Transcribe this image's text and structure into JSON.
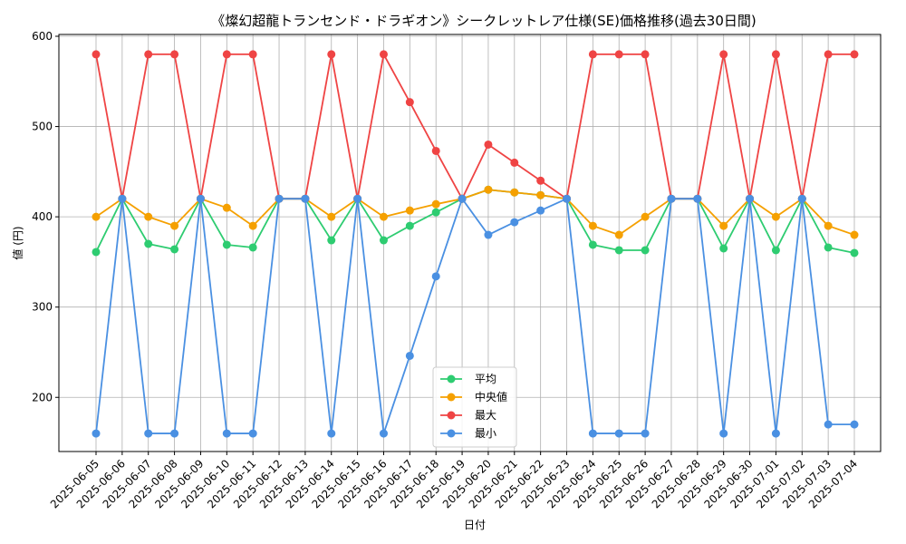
{
  "chart_data": {
    "type": "line",
    "title": "《燦幻超龍トランセンド・ドラギオン》シークレットレア仕様(SE)価格推移(過去30日間)",
    "xlabel": "日付",
    "ylabel": "値 (円)",
    "ylim": [
      140,
      602
    ],
    "yticks": [
      200,
      300,
      400,
      500,
      600
    ],
    "grid": true,
    "legend_position": "bottom-center",
    "categories": [
      "2025-06-05",
      "2025-06-06",
      "2025-06-07",
      "2025-06-08",
      "2025-06-09",
      "2025-06-10",
      "2025-06-11",
      "2025-06-12",
      "2025-06-13",
      "2025-06-14",
      "2025-06-15",
      "2025-06-16",
      "2025-06-17",
      "2025-06-18",
      "2025-06-19",
      "2025-06-20",
      "2025-06-21",
      "2025-06-22",
      "2025-06-23",
      "2025-06-24",
      "2025-06-25",
      "2025-06-26",
      "2025-06-27",
      "2025-06-28",
      "2025-06-29",
      "2025-06-30",
      "2025-07-01",
      "2025-07-02",
      "2025-07-03",
      "2025-07-04"
    ],
    "series": [
      {
        "name": "平均",
        "color": "#2ecc71",
        "values": [
          361,
          420,
          370,
          364,
          420,
          369,
          366,
          420,
          420,
          374,
          420,
          374,
          390,
          405,
          420,
          430,
          427,
          424,
          420,
          369,
          363,
          363,
          420,
          420,
          365,
          420,
          363,
          420,
          366,
          360
        ]
      },
      {
        "name": "中央値",
        "color": "#f5a000",
        "values": [
          400,
          420,
          400,
          390,
          420,
          410,
          390,
          420,
          420,
          400,
          420,
          400,
          407,
          414,
          420,
          430,
          427,
          424,
          420,
          390,
          380,
          400,
          420,
          420,
          390,
          420,
          400,
          420,
          390,
          380
        ]
      },
      {
        "name": "最大",
        "color": "#ef4444",
        "values": [
          580,
          420,
          580,
          580,
          420,
          580,
          580,
          420,
          420,
          580,
          420,
          580,
          527,
          473,
          420,
          480,
          460,
          440,
          420,
          580,
          580,
          580,
          420,
          420,
          580,
          420,
          580,
          420,
          580,
          580
        ]
      },
      {
        "name": "最小",
        "color": "#4a90e2",
        "values": [
          160,
          420,
          160,
          160,
          420,
          160,
          160,
          420,
          420,
          160,
          420,
          160,
          246,
          334,
          420,
          380,
          394,
          407,
          420,
          160,
          160,
          160,
          420,
          420,
          160,
          420,
          160,
          420,
          170,
          170
        ]
      }
    ]
  }
}
